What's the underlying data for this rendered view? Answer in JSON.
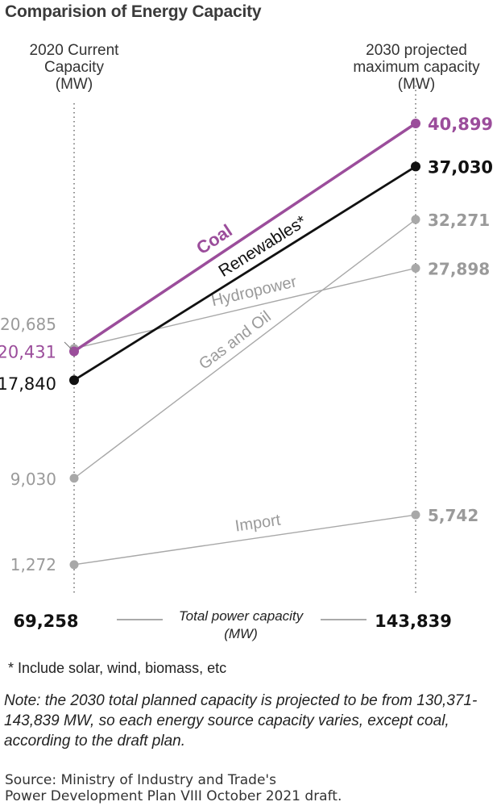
{
  "title": "Comparision of Energy Capacity",
  "left_header": [
    "2020 Current",
    "Capacity",
    "(MW)"
  ],
  "right_header": [
    "2030 projected",
    "maximum capacity",
    "(MW)"
  ],
  "chart_data": {
    "type": "line",
    "x": [
      "2020 Current Capacity (MW)",
      "2030 projected maximum capacity (MW)"
    ],
    "ylim": [
      0,
      42000
    ],
    "series": [
      {
        "name": "Coal",
        "values": [
          20431,
          40899
        ],
        "left_label": "20,431",
        "right_label": "40,899",
        "color": "#9b4d9b",
        "emphasis": true
      },
      {
        "name": "Renewables*",
        "values": [
          17840,
          37030
        ],
        "left_label": "17,840",
        "right_label": "37,030",
        "color": "#111111",
        "emphasis": true
      },
      {
        "name": "Hydropower",
        "values": [
          20685,
          27898
        ],
        "left_label": "20,685",
        "right_label": "27,898",
        "color": "#a8a8a8",
        "emphasis": false
      },
      {
        "name": "Gas and Oil",
        "values": [
          9030,
          32271
        ],
        "left_label": "9,030",
        "right_label": "32,271",
        "color": "#a8a8a8",
        "emphasis": false
      },
      {
        "name": "Import",
        "values": [
          1272,
          5742
        ],
        "left_label": "1,272",
        "right_label": "5,742",
        "color": "#a8a8a8",
        "emphasis": false
      }
    ],
    "total": {
      "label_line1": "Total power capacity",
      "label_line2": "(MW)",
      "left": "69,258",
      "right": "143,839"
    }
  },
  "footnote": "* Include solar, wind, biomass, etc",
  "note": "Note: the 2030 total planned capacity is projected to be from 130,371-143,839 MW, so each energy source capacity varies, except coal, according to the draft plan.",
  "source_line1": "Source: Ministry of Industry and Trade's",
  "source_line2": "Power Development Plan VIII October 2021 draft."
}
